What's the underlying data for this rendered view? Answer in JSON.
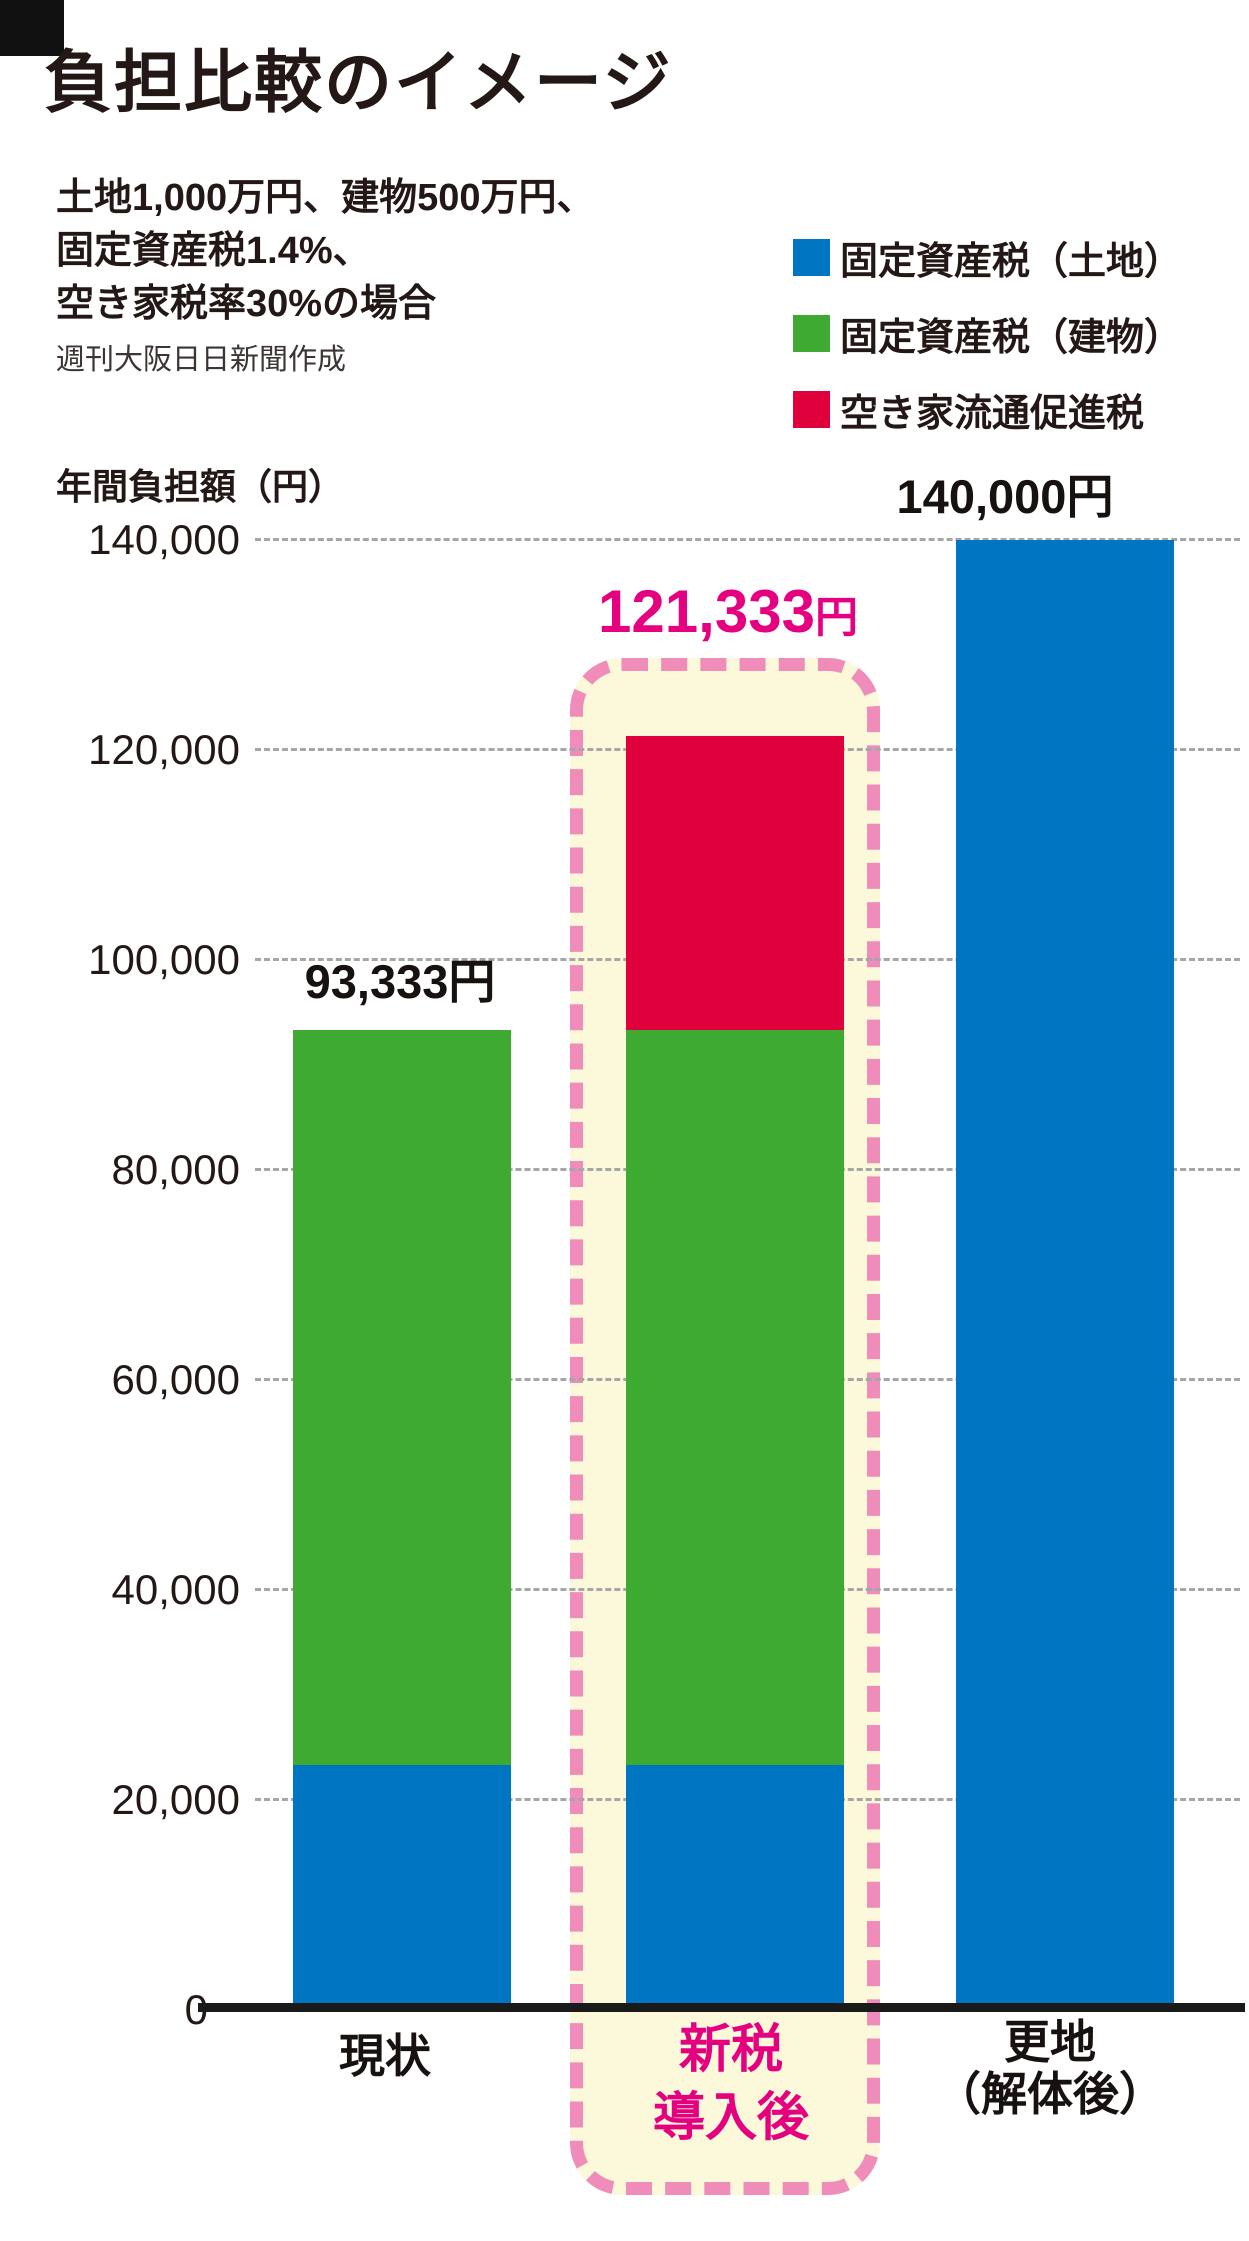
{
  "header": {
    "title": "負担比較のイメージ",
    "subtitle_lines": [
      "土地1,000万円、建物500万円、",
      "固定資産税1.4%、",
      "空き家税率30%の場合"
    ],
    "credit": "週刊大阪日日新聞作成"
  },
  "legend": {
    "items": [
      {
        "label": "固定資産税（土地）",
        "color": "#0075c2"
      },
      {
        "label": "固定資産税（建物）",
        "color": "#3eaa32"
      },
      {
        "label": "空き家流通促進税",
        "color": "#e0003c"
      }
    ]
  },
  "chart_data": {
    "type": "bar",
    "stacked": true,
    "title": "負担比較のイメージ",
    "ylabel": "年間負担額（円）",
    "ylim": [
      0,
      140000
    ],
    "yticks": [
      140000,
      120000,
      100000,
      80000,
      60000,
      40000,
      20000,
      0
    ],
    "ytick_labels": [
      "140,000",
      "120,000",
      "100,000",
      "80,000",
      "60,000",
      "40,000",
      "20,000",
      "0"
    ],
    "grid": "horizontal-dotted",
    "legend_position": "top-right",
    "categories": [
      "現状",
      "新税導入後",
      "更地（解体後）"
    ],
    "category_label_lines": [
      [
        "現状"
      ],
      [
        "新税",
        "導入後"
      ],
      [
        "更地",
        "（解体後）"
      ]
    ],
    "series": [
      {
        "key": "land",
        "name": "固定資産税（土地）",
        "color": "#0075c2",
        "values": [
          23333,
          23333,
          140000
        ]
      },
      {
        "key": "building",
        "name": "固定資産税（建物）",
        "color": "#3eaa32",
        "values": [
          70000,
          70000,
          0
        ]
      },
      {
        "key": "vacancy",
        "name": "空き家流通促進税",
        "color": "#e0003c",
        "values": [
          0,
          28000,
          0
        ]
      }
    ],
    "totals": [
      93333,
      121333,
      140000
    ],
    "total_labels": [
      {
        "value": "93,333",
        "unit": "円",
        "color": "#171210"
      },
      {
        "value": "121,333",
        "unit": "円",
        "color": "#e4007f"
      },
      {
        "value": "140,000",
        "unit": "円",
        "color": "#171210"
      }
    ],
    "highlight": {
      "category": "新税導入後",
      "box_fill": "#fbf9da",
      "box_border": "#ef8cba",
      "label_color": "#e4007f"
    }
  },
  "colors": {
    "text": "#231815",
    "axis": "#1a1a1a",
    "grid": "#a6a6a6",
    "pink_accent": "#e4007f"
  }
}
